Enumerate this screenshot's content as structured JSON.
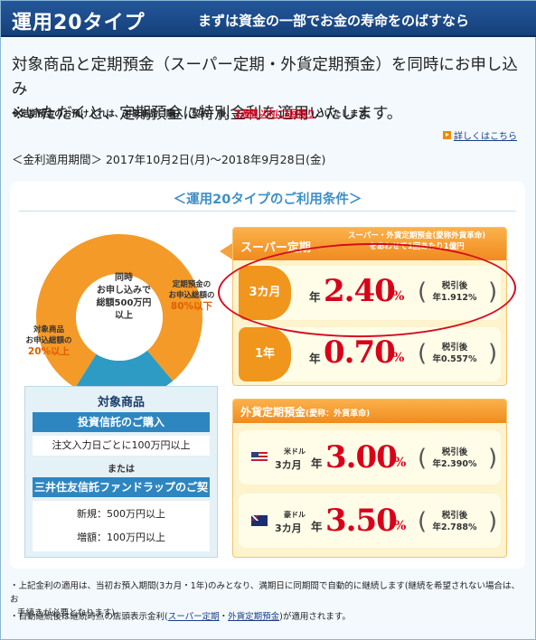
{
  "header": {
    "title": "運用20タイプ",
    "subtitle": "まずは資金の一部でお金の寿命をのばすなら"
  },
  "intro": {
    "line1": "対象商品と定期預金（スーパー定期・外貨定期預金）を同時にお申し込み",
    "line2": "※いただくと、定期預金に特別金利を適用いたします。",
    "note_prefix": "※定期預金のお預け入れは、対象商品ご購入（契約）後、",
    "note_highlight": "2週間以内に1回限り",
    "note_suffix": "といたします。"
  },
  "detail_link": "詳しくはこちら",
  "period": "＜金利適用期間＞ 2017年10月2日(月)〜2018年9月28日(金)",
  "conditions": {
    "title": "＜運用20タイプのご利用条件＞",
    "donut_center": [
      "同時",
      "お申し込みで",
      "総額500万円",
      "以上"
    ],
    "right_label": [
      "定期預金の",
      "お申込総額の"
    ],
    "right_pct": "80%以下",
    "left_label": [
      "対象商品",
      "お申込総額の"
    ],
    "left_pct": "20%以上",
    "donut_values": {
      "deposit_pct": 80,
      "product_pct": 20
    },
    "colors": {
      "deposit": "#f39a28",
      "product": "#2d9bc3"
    }
  },
  "target": {
    "heading": "対象商品",
    "investment_trust": "投資信託のご購入",
    "investment_trust_detail": "注文入力日ごとに100万円以上",
    "or": "または",
    "fund_wrap": "三井住友信託ファンドラップのご契約",
    "new": "新規：500万円以上",
    "add": "増額：100万円以上"
  },
  "super_teiki": {
    "title": "スーパー定期",
    "subtitle": [
      "スーパー・外貨定期預金(愛称外貨革命)",
      "をあわせて1回あたり1億円"
    ],
    "rates": [
      {
        "term": "3カ月",
        "nen": "年",
        "rate": "2.40",
        "pct": "%",
        "after_label": "税引後",
        "after_rate": "年1.912%"
      },
      {
        "term": "1年",
        "nen": "年",
        "rate": "0.70",
        "pct": "%",
        "after_label": "税引後",
        "after_rate": "年0.557%"
      }
    ]
  },
  "fx": {
    "title": "外貨定期預金",
    "title_sub": "(愛称：外貨革命)",
    "rates": [
      {
        "currency": "米ドル",
        "flag": "us-flag",
        "term": "3カ月",
        "nen": "年",
        "rate": "3.00",
        "pct": "%",
        "after_label": "税引後",
        "after_rate": "年2.390%"
      },
      {
        "currency": "豪ドル",
        "flag": "au-flag",
        "term": "3カ月",
        "nen": "年",
        "rate": "3.50",
        "pct": "%",
        "after_label": "税引後",
        "after_rate": "年2.788%"
      }
    ]
  },
  "footnotes": {
    "line1": "・上記金利の適用は、当初お預入期間(3カ月・1年)のみとなり、満期日に同期間で自動的に継続します(継続を希望されない場合は、お",
    "line1b": "手続きが必要となります)。",
    "line2_prefix": "・自動継続後は継続時点の店頭表示金利(",
    "line2_link1": "スーパー定期",
    "line2_mid": "・",
    "line2_link2": "外貨定期預金",
    "line2_suffix": ")が適用されます。"
  }
}
